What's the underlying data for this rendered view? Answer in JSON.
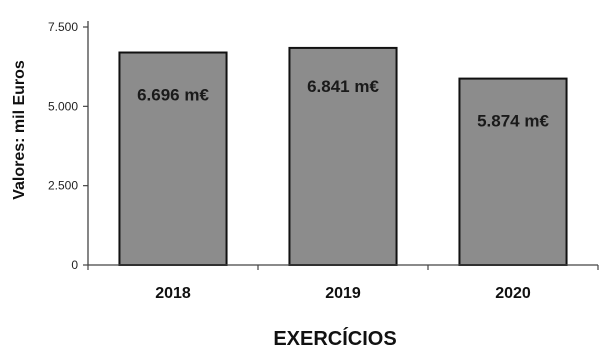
{
  "chart_data": {
    "type": "bar",
    "categories": [
      "2018",
      "2019",
      "2020"
    ],
    "values": [
      6696,
      6841,
      5874
    ],
    "data_labels": [
      "6.696 m€",
      "6.841 m€",
      "5.874 m€"
    ],
    "yticks": [
      "0",
      "2.500",
      "5.000",
      "7.500"
    ],
    "ytick_values": [
      0,
      2500,
      5000,
      7500
    ],
    "ylim": [
      0,
      7500
    ],
    "xlabel": "EXERCÍCIOS",
    "ylabel": "Valores: mil Euros",
    "grid": false,
    "bar_color": "#8c8c8c",
    "bar_edge_color": "#111111"
  }
}
